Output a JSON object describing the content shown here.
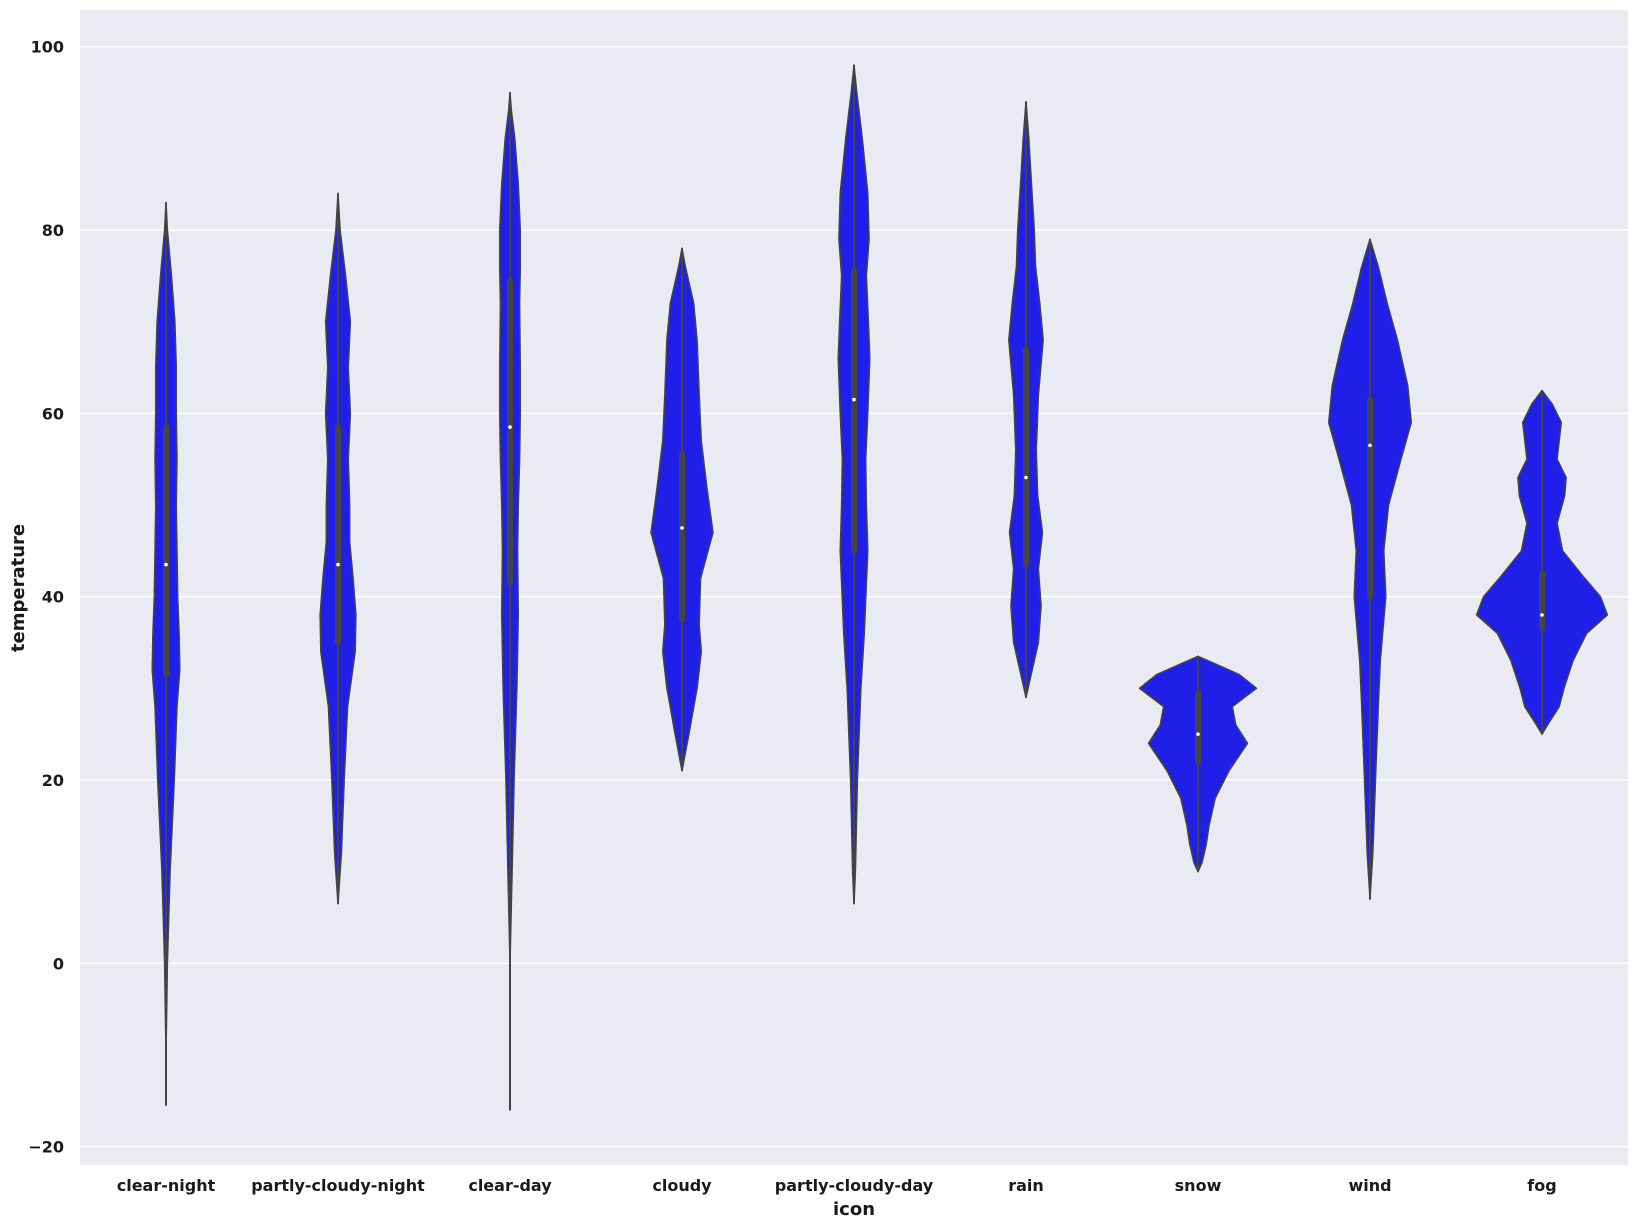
{
  "chart_data": {
    "type": "violin",
    "xlabel": "icon",
    "ylabel": "temperature",
    "ylim": [
      -22,
      104
    ],
    "yticks": [
      -20,
      0,
      20,
      40,
      60,
      80,
      100
    ],
    "grid": true,
    "background": "#eaeaf2",
    "violin_color": "#1f1fe8",
    "inner_color": "#444444",
    "categories": [
      "clear-night",
      "partly-cloudy-night",
      "clear-day",
      "cloudy",
      "partly-cloudy-day",
      "rain",
      "snow",
      "wind",
      "fog"
    ],
    "violins": [
      {
        "category": "clear-night",
        "min": -15.5,
        "q1": 31.5,
        "median": 43.5,
        "q3": 58.5,
        "max": 83,
        "profile": [
          [
            -15.5,
            0.0
          ],
          [
            -10,
            0.0
          ],
          [
            0,
            0.02
          ],
          [
            10,
            0.06
          ],
          [
            20,
            0.12
          ],
          [
            28,
            0.16
          ],
          [
            32,
            0.2
          ],
          [
            36,
            0.19
          ],
          [
            40,
            0.17
          ],
          [
            45,
            0.16
          ],
          [
            50,
            0.15
          ],
          [
            55,
            0.16
          ],
          [
            60,
            0.15
          ],
          [
            65,
            0.15
          ],
          [
            70,
            0.13
          ],
          [
            75,
            0.08
          ],
          [
            80,
            0.02
          ],
          [
            83,
            0.0
          ]
        ]
      },
      {
        "category": "partly-cloudy-night",
        "min": 6.5,
        "q1": 35,
        "median": 43.5,
        "q3": 58.5,
        "max": 84,
        "profile": [
          [
            6.5,
            0.0
          ],
          [
            12,
            0.05
          ],
          [
            20,
            0.09
          ],
          [
            28,
            0.14
          ],
          [
            34,
            0.25
          ],
          [
            38,
            0.26
          ],
          [
            42,
            0.22
          ],
          [
            46,
            0.17
          ],
          [
            50,
            0.17
          ],
          [
            55,
            0.15
          ],
          [
            60,
            0.18
          ],
          [
            65,
            0.15
          ],
          [
            70,
            0.18
          ],
          [
            75,
            0.11
          ],
          [
            80,
            0.03
          ],
          [
            84,
            0.0
          ]
        ]
      },
      {
        "category": "clear-day",
        "min": -16,
        "q1": 41.5,
        "median": 58.5,
        "q3": 74.5,
        "max": 95,
        "profile": [
          [
            -16,
            0.0
          ],
          [
            0,
            0.0
          ],
          [
            10,
            0.03
          ],
          [
            20,
            0.06
          ],
          [
            30,
            0.1
          ],
          [
            38,
            0.12
          ],
          [
            45,
            0.11
          ],
          [
            50,
            0.12
          ],
          [
            55,
            0.14
          ],
          [
            60,
            0.15
          ],
          [
            65,
            0.15
          ],
          [
            72,
            0.14
          ],
          [
            76,
            0.15
          ],
          [
            80,
            0.15
          ],
          [
            85,
            0.12
          ],
          [
            90,
            0.07
          ],
          [
            93,
            0.02
          ],
          [
            95,
            0.0
          ]
        ]
      },
      {
        "category": "cloudy",
        "min": 21,
        "q1": 37.5,
        "median": 47.5,
        "q3": 55.5,
        "max": 78,
        "profile": [
          [
            21,
            0.0
          ],
          [
            25,
            0.1
          ],
          [
            30,
            0.22
          ],
          [
            34,
            0.28
          ],
          [
            37,
            0.25
          ],
          [
            42,
            0.27
          ],
          [
            47,
            0.45
          ],
          [
            52,
            0.36
          ],
          [
            57,
            0.28
          ],
          [
            62,
            0.25
          ],
          [
            68,
            0.22
          ],
          [
            72,
            0.17
          ],
          [
            76,
            0.05
          ],
          [
            78,
            0.0
          ]
        ]
      },
      {
        "category": "partly-cloudy-day",
        "min": 6.5,
        "q1": 45,
        "median": 61.5,
        "q3": 75.5,
        "max": 98,
        "profile": [
          [
            6.5,
            0.0
          ],
          [
            10,
            0.02
          ],
          [
            20,
            0.05
          ],
          [
            30,
            0.1
          ],
          [
            36,
            0.15
          ],
          [
            45,
            0.2
          ],
          [
            50,
            0.18
          ],
          [
            55,
            0.17
          ],
          [
            60,
            0.2
          ],
          [
            66,
            0.23
          ],
          [
            70,
            0.21
          ],
          [
            75,
            0.18
          ],
          [
            79,
            0.22
          ],
          [
            84,
            0.2
          ],
          [
            90,
            0.12
          ],
          [
            95,
            0.04
          ],
          [
            98,
            0.0
          ]
        ]
      },
      {
        "category": "rain",
        "min": 29,
        "q1": 43.5,
        "median": 53,
        "q3": 67,
        "max": 94,
        "profile": [
          [
            29,
            0.0
          ],
          [
            31,
            0.06
          ],
          [
            35,
            0.18
          ],
          [
            39,
            0.22
          ],
          [
            43,
            0.18
          ],
          [
            47,
            0.24
          ],
          [
            51,
            0.17
          ],
          [
            56,
            0.15
          ],
          [
            62,
            0.18
          ],
          [
            68,
            0.25
          ],
          [
            72,
            0.2
          ],
          [
            76,
            0.14
          ],
          [
            80,
            0.12
          ],
          [
            85,
            0.08
          ],
          [
            90,
            0.04
          ],
          [
            94,
            0.0
          ]
        ]
      },
      {
        "category": "snow",
        "min": 10,
        "q1": 22,
        "median": 25,
        "q3": 29.5,
        "max": 33.5,
        "profile": [
          [
            10,
            0.0
          ],
          [
            11,
            0.06
          ],
          [
            13,
            0.12
          ],
          [
            15,
            0.16
          ],
          [
            18,
            0.25
          ],
          [
            21,
            0.45
          ],
          [
            24,
            0.72
          ],
          [
            26,
            0.55
          ],
          [
            28,
            0.5
          ],
          [
            30,
            0.85
          ],
          [
            31.5,
            0.6
          ],
          [
            33,
            0.15
          ],
          [
            33.5,
            0.0
          ]
        ]
      },
      {
        "category": "wind",
        "min": 7,
        "q1": 40,
        "median": 56.5,
        "q3": 61.5,
        "max": 79,
        "profile": [
          [
            7,
            0.0
          ],
          [
            12,
            0.04
          ],
          [
            20,
            0.08
          ],
          [
            28,
            0.12
          ],
          [
            33,
            0.15
          ],
          [
            40,
            0.23
          ],
          [
            45,
            0.2
          ],
          [
            50,
            0.27
          ],
          [
            55,
            0.45
          ],
          [
            59,
            0.6
          ],
          [
            63,
            0.55
          ],
          [
            68,
            0.4
          ],
          [
            72,
            0.25
          ],
          [
            76,
            0.12
          ],
          [
            79,
            0.0
          ]
        ]
      },
      {
        "category": "fog",
        "min": 25,
        "q1": 36.5,
        "median": 38,
        "q3": 42.5,
        "max": 62.5,
        "profile": [
          [
            25,
            0.0
          ],
          [
            26,
            0.08
          ],
          [
            28,
            0.25
          ],
          [
            30,
            0.32
          ],
          [
            33,
            0.45
          ],
          [
            36,
            0.65
          ],
          [
            38,
            0.95
          ],
          [
            40,
            0.85
          ],
          [
            42,
            0.62
          ],
          [
            45,
            0.3
          ],
          [
            48,
            0.22
          ],
          [
            51,
            0.33
          ],
          [
            53,
            0.35
          ],
          [
            55,
            0.22
          ],
          [
            57,
            0.25
          ],
          [
            59,
            0.28
          ],
          [
            61,
            0.15
          ],
          [
            62.5,
            0.0
          ]
        ]
      }
    ]
  }
}
